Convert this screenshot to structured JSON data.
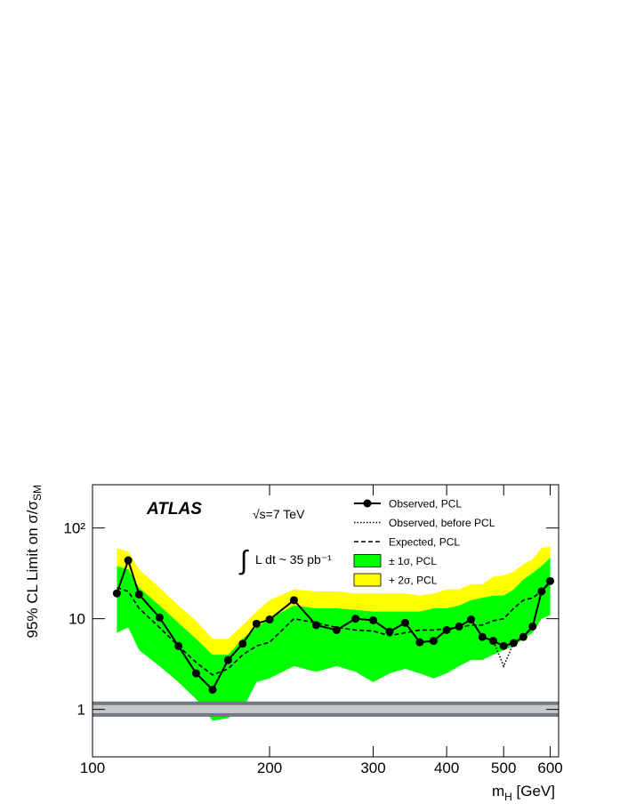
{
  "chart_data": {
    "type": "limit",
    "annotations": {
      "experiment": "ATLAS",
      "energy": "√s=7 TeV",
      "lumi": "L dt ~ 35 pb⁻¹",
      "integral": "∫"
    },
    "y_label": "95% CL Limit on σ/σ",
    "y_label_sub": "SM",
    "x_label": "m",
    "x_label_sub": "H",
    "x_label_unit": " [GeV]",
    "log_x": true,
    "log_y": true,
    "xlim": [
      100,
      620
    ],
    "ylim": [
      0.3,
      300
    ],
    "xticks": [
      100,
      200,
      300,
      400,
      500,
      600
    ],
    "yticks": [
      1,
      10,
      {
        "value": 100,
        "label": "10²"
      }
    ],
    "x": [
      110,
      115,
      120,
      130,
      140,
      150,
      160,
      170,
      180,
      190,
      200,
      220,
      240,
      260,
      280,
      300,
      320,
      340,
      360,
      380,
      400,
      420,
      440,
      460,
      480,
      500,
      520,
      540,
      560,
      580,
      600
    ],
    "series": [
      {
        "name": "Observed, PCL",
        "style": "marker",
        "color": "#000000",
        "values": [
          19,
          44,
          18.5,
          10.3,
          5.0,
          2.5,
          1.65,
          3.5,
          5.3,
          8.8,
          9.8,
          16,
          8.5,
          7.5,
          10,
          9.6,
          7.2,
          9,
          5.5,
          5.7,
          7.5,
          8.2,
          9.8,
          6.3,
          5.7,
          5.0,
          5.4,
          6.3,
          8.2,
          20,
          26
        ]
      },
      {
        "name": "Observed, before PCL",
        "style": "dotted",
        "color": "#000000",
        "values": [
          19,
          44,
          18.5,
          10.3,
          5.0,
          2.5,
          1.65,
          3.5,
          5.3,
          8.8,
          9.8,
          16,
          8.5,
          7.5,
          10,
          9.6,
          7.2,
          9,
          5.5,
          5.7,
          7.5,
          8.2,
          9.8,
          6.3,
          5.7,
          3.0,
          5.4,
          6.3,
          8.2,
          20,
          26
        ]
      },
      {
        "name": "Expected, PCL",
        "style": "dashed",
        "color": "#000000",
        "values": [
          22,
          20,
          13,
          8,
          5,
          3.3,
          2.4,
          2.8,
          4,
          5,
          5.5,
          10,
          9,
          8,
          7.5,
          7.3,
          6.5,
          7,
          7.5,
          7.5,
          7.8,
          8,
          8.5,
          8.5,
          9.5,
          10,
          13,
          16,
          17,
          20,
          25
        ]
      },
      {
        "name": "± 1σ, PCL",
        "style": "band",
        "color": "#00ff00",
        "low": [
          7,
          8,
          4.5,
          3,
          2,
          1.3,
          0.75,
          0.8,
          1,
          2,
          2.2,
          3,
          2.6,
          3,
          2.6,
          2,
          2.5,
          2.8,
          2.5,
          2.2,
          2.5,
          3,
          3.5,
          3.5,
          4,
          4.5,
          5,
          6,
          7,
          10,
          11
        ],
        "high": [
          38,
          35,
          22,
          14,
          9,
          6,
          4,
          4,
          6,
          8,
          10,
          14,
          13,
          13,
          12.5,
          12,
          12,
          12,
          12,
          13,
          13,
          14,
          16,
          17,
          18,
          18,
          21,
          27,
          32,
          38,
          47
        ]
      },
      {
        "name": "+ 2σ, PCL",
        "style": "band-upper",
        "color": "#ffff00",
        "values": [
          60,
          55,
          35,
          22,
          14,
          9.5,
          6,
          6,
          8.5,
          12,
          16,
          21,
          20,
          20,
          19,
          19,
          19,
          19,
          18,
          19,
          21,
          21,
          24,
          24,
          29,
          30,
          33,
          40,
          45,
          60,
          62
        ]
      }
    ],
    "sm_band": {
      "low": 0.87,
      "high": 1.17,
      "color": "#c8c8c8",
      "edge": "#6f7a87"
    }
  }
}
